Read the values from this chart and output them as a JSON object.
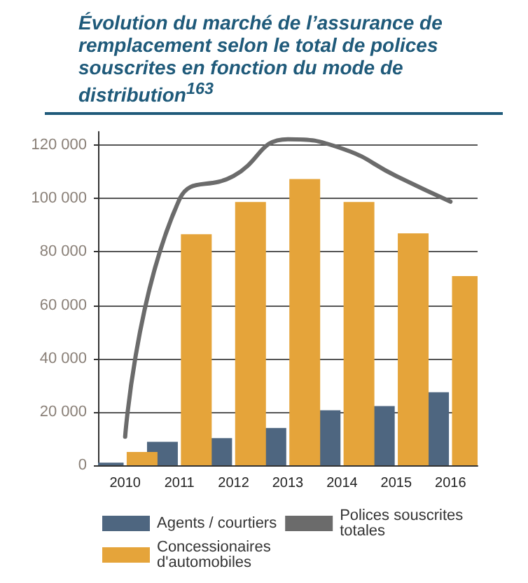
{
  "chart_data": {
    "type": "bar",
    "title": "Évolution du marché de l’assurance de remplacement selon le total de polices souscrites en fonction du mode de distribution$^{163}$",
    "categories": [
      "2010",
      "2011",
      "2012",
      "2013",
      "2014",
      "2015",
      "2016"
    ],
    "series": [
      {
        "name": "Agents / courtiers",
        "color": "#4e6680",
        "values": [
          1000,
          8800,
          10200,
          14000,
          20600,
          22200,
          27400
        ]
      },
      {
        "name": "Concessionaires d'automobiles",
        "color": "#e5a43a",
        "values": [
          5000,
          86600,
          98700,
          107300,
          98700,
          86900,
          70900
        ]
      },
      {
        "name": "Polices souscrites totales",
        "type": "line",
        "color": "#6b6b6b",
        "values": [
          10700,
          99600,
          108400,
          122200,
          118700,
          108400,
          98800
        ]
      }
    ],
    "ylim": [
      0,
      125000
    ],
    "yticks": [
      {
        "value": 0,
        "label": "0"
      },
      {
        "value": 20000,
        "label": "20 000"
      },
      {
        "value": 40000,
        "label": "40 000"
      },
      {
        "value": 60000,
        "label": "60 000"
      },
      {
        "value": 80000,
        "label": "80 000"
      },
      {
        "value": 100000,
        "label": "100 000"
      },
      {
        "value": 120000,
        "label": "120 000"
      }
    ],
    "grid": "y",
    "legend": "bottom",
    "marker": "none"
  }
}
